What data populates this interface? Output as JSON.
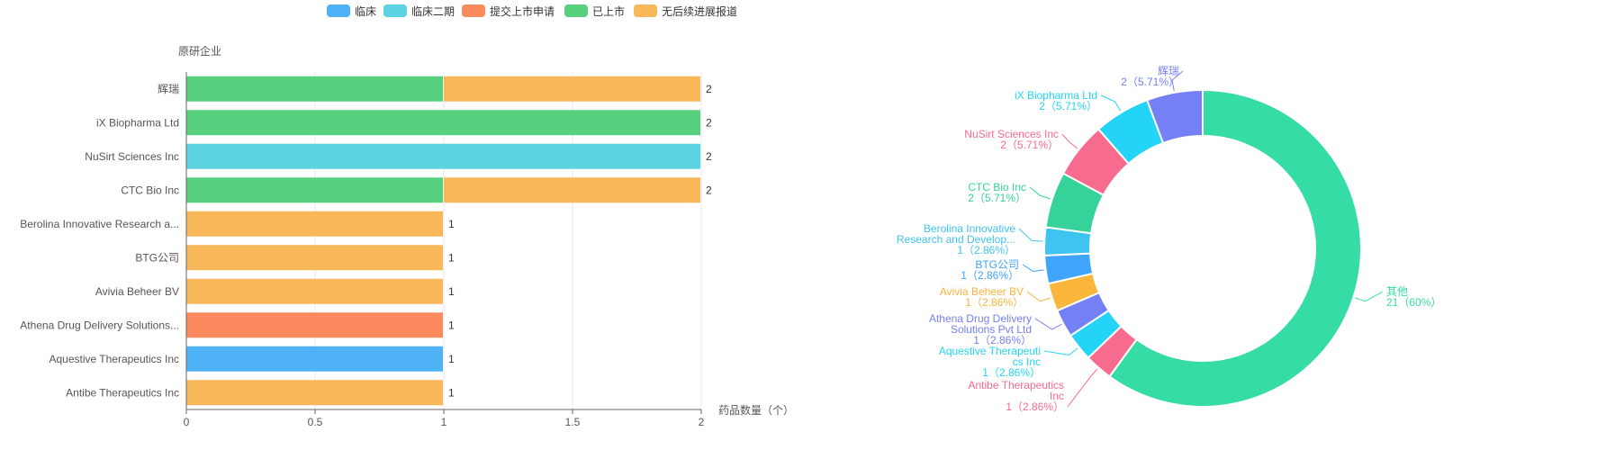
{
  "legend": [
    {
      "label": "临床",
      "color": "#4FB2F7"
    },
    {
      "label": "临床二期",
      "color": "#5BD3E0"
    },
    {
      "label": "提交上市申请",
      "color": "#FB8A5E"
    },
    {
      "label": "已上市",
      "color": "#58D17F"
    },
    {
      "label": "无后续进展报道",
      "color": "#F8B758"
    }
  ],
  "chart_data": [
    {
      "type": "bar",
      "orientation": "horizontal",
      "stacked": true,
      "ylabel": "原研企业",
      "xlabel": "药品数量（个）",
      "xlim": [
        0,
        2
      ],
      "xticks": [
        "0",
        "0.5",
        "1",
        "1.5",
        "2"
      ],
      "grid": true,
      "legend_position": "top",
      "categories": [
        "辉瑞",
        "iX Biopharma Ltd",
        "NuSirt Sciences Inc",
        "CTC Bio Inc",
        "Berolina Innovative Research a...",
        "BTG公司",
        "Avivia Beheer BV",
        "Athena Drug Delivery Solutions...",
        "Aquestive Therapeutics Inc",
        "Antibe Therapeutics Inc"
      ],
      "totals": [
        "2",
        "2",
        "2",
        "2",
        "1",
        "1",
        "1",
        "1",
        "1",
        "1"
      ],
      "series": [
        {
          "name": "临床",
          "color": "#4FB2F7",
          "values": [
            0,
            0,
            0,
            0,
            0,
            0,
            0,
            0,
            1,
            0
          ]
        },
        {
          "name": "临床二期",
          "color": "#5BD3E0",
          "values": [
            0,
            0,
            2,
            0,
            0,
            0,
            0,
            0,
            0,
            0
          ]
        },
        {
          "name": "提交上市申请",
          "color": "#FB8A5E",
          "values": [
            0,
            0,
            0,
            0,
            0,
            0,
            0,
            1,
            0,
            0
          ]
        },
        {
          "name": "已上市",
          "color": "#58D17F",
          "values": [
            1,
            2,
            0,
            1,
            0,
            0,
            0,
            0,
            0,
            0
          ]
        },
        {
          "name": "无后续进展报道",
          "color": "#F8B758",
          "values": [
            1,
            0,
            0,
            1,
            1,
            1,
            1,
            0,
            0,
            1
          ]
        }
      ]
    },
    {
      "type": "pie",
      "donut": true,
      "slices": [
        {
          "label": "其他",
          "value": 21,
          "percent": "60%",
          "color": "#35DCA6",
          "label_lines": [
            "其他",
            "21（60%）"
          ]
        },
        {
          "label": "Antibe Therapeutics Inc",
          "value": 1,
          "percent": "2.86%",
          "color": "#F76B8F",
          "label_lines": [
            "Antibe Therapeutics",
            "Inc",
            "1（2.86%）"
          ]
        },
        {
          "label": "Aquestive Therapeutics Inc",
          "value": 1,
          "percent": "2.86%",
          "color": "#23D4F7",
          "label_lines": [
            "Aquestive Therapeuti",
            "cs Inc",
            "1（2.86%）"
          ]
        },
        {
          "label": "Athena Drug Delivery Solutions Pvt Ltd",
          "value": 1,
          "percent": "2.86%",
          "color": "#7580F5",
          "label_lines": [
            "Athena Drug Delivery",
            "Solutions Pvt Ltd",
            "1（2.86%）"
          ]
        },
        {
          "label": "Avivia Beheer BV",
          "value": 1,
          "percent": "2.86%",
          "color": "#FAB53B",
          "label_lines": [
            "Avivia Beheer BV",
            "1（2.86%）"
          ]
        },
        {
          "label": "BTG公司",
          "value": 1,
          "percent": "2.86%",
          "color": "#3EA5FA",
          "label_lines": [
            "BTG公司",
            "1（2.86%）"
          ]
        },
        {
          "label": "Berolina Innovative Research and Develop...",
          "value": 1,
          "percent": "2.86%",
          "color": "#3FC4F2",
          "label_lines": [
            "Berolina Innovative",
            "Research and Develop...",
            "1（2.86%）"
          ]
        },
        {
          "label": "CTC Bio Inc",
          "value": 2,
          "percent": "5.71%",
          "color": "#35D39A",
          "label_lines": [
            "CTC Bio Inc",
            "2（5.71%）"
          ]
        },
        {
          "label": "NuSirt Sciences Inc",
          "value": 2,
          "percent": "5.71%",
          "color": "#F76B8F",
          "label_lines": [
            "NuSirt Sciences Inc",
            "2（5.71%）"
          ]
        },
        {
          "label": "iX Biopharma Ltd",
          "value": 2,
          "percent": "5.71%",
          "color": "#23D4F7",
          "label_lines": [
            "iX Biopharma Ltd",
            "2（5.71%）"
          ]
        },
        {
          "label": "辉瑞",
          "value": 2,
          "percent": "5.71%",
          "color": "#7580F5",
          "label_lines": [
            "辉瑞",
            "2（5.71%）"
          ]
        }
      ]
    }
  ]
}
